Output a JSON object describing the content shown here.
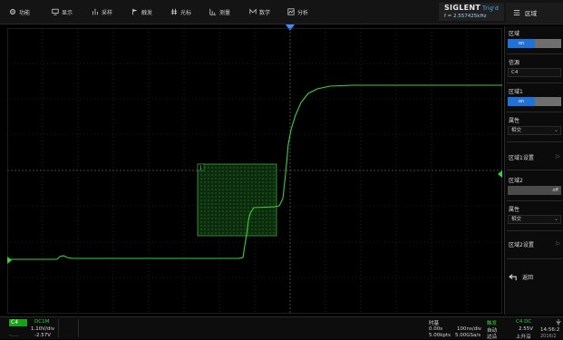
{
  "menu": {
    "items": [
      {
        "icon": "gear-icon",
        "label": "功能"
      },
      {
        "icon": "display-icon",
        "label": "显示"
      },
      {
        "icon": "acquire-icon",
        "label": "采样"
      },
      {
        "icon": "trigger-flag-icon",
        "label": "触发"
      },
      {
        "icon": "cursor-icon",
        "label": "光标"
      },
      {
        "icon": "measure-icon",
        "label": "测量"
      },
      {
        "icon": "math-icon",
        "label": "数学"
      },
      {
        "icon": "analyze-icon",
        "label": "分析"
      }
    ]
  },
  "brand": {
    "name": "SIGLENT",
    "sub": "Trig'd",
    "freq": "f = 2.557425kHz"
  },
  "panel": {
    "title": "区域",
    "zone_label": "区域",
    "zone_on": "on",
    "source_label": "信源",
    "source_value": "C4",
    "zone1_label": "区域1",
    "zone1_on": "on",
    "property1_label": "属性",
    "property1_value": "相交",
    "zone1_settings": "区域1设置",
    "zone2_label": "区域2",
    "zone2_off": "off",
    "property2_label": "属性",
    "property2_value": "相交",
    "zone2_settings": "区域2设置",
    "back_label": "返回"
  },
  "zone_box": {
    "label": "1"
  },
  "bottom": {
    "ch_tag": "C4",
    "ch_coupling": "DC1M",
    "ch_scale": "1.10V/div",
    "ch_offset_label": "-.....",
    "ch_offset": "-2.57V",
    "timebase_label": "时基",
    "timebase_delay": "0.00s",
    "timebase_div": "100ns/div",
    "timebase_sa": "5.00kpts",
    "timebase_rate": "5.00GSa/s",
    "trig_label": "触发",
    "trig_mode": "自动",
    "trig_type": "边沿",
    "trig_src": "C4 DC",
    "trig_level": "2.55V",
    "trig_slope": "上升沿",
    "clock_time": "14:56:2",
    "clock_date": "2016/2"
  },
  "colors": {
    "accent": "#1f72d8",
    "trace": "#3ad13a",
    "zone": "#2f8f2f"
  }
}
